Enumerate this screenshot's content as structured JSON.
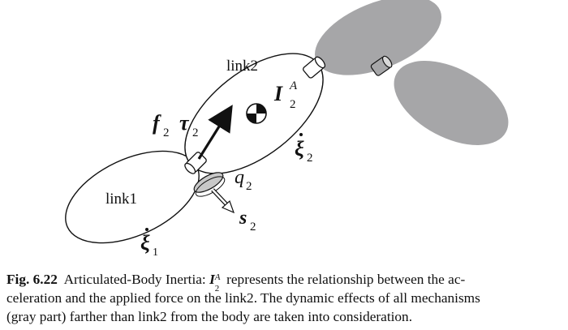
{
  "diagram": {
    "link1_label": "link1",
    "link2_label": "link2",
    "inertia": {
      "base": "I",
      "sub": "2",
      "sup": "A"
    },
    "force": {
      "base": "f",
      "sub": "2"
    },
    "torque": {
      "base": "τ",
      "sub": "2"
    },
    "velocity2": {
      "base": "ξ",
      "sub": "2"
    },
    "velocity1": {
      "base": "ξ",
      "sub": "1"
    },
    "joint_angle": {
      "base": "q",
      "sub": "2"
    },
    "joint_axis": {
      "base": "s",
      "sub": "2"
    },
    "gray_color": "#a6a6a8"
  },
  "caption": {
    "fig_label": "Fig. 6.22",
    "text_before_symbol": "Articulated-Body Inertia:",
    "symbol_base": "I",
    "symbol_sub": "2",
    "symbol_sup": "A",
    "text_after_symbol_1": "represents the relationship between the ac-",
    "line2": "celeration and the applied force on the link2. The dynamic effects of all mechanisms",
    "line3": "(gray part) farther than link2 from the body are taken into consideration."
  }
}
